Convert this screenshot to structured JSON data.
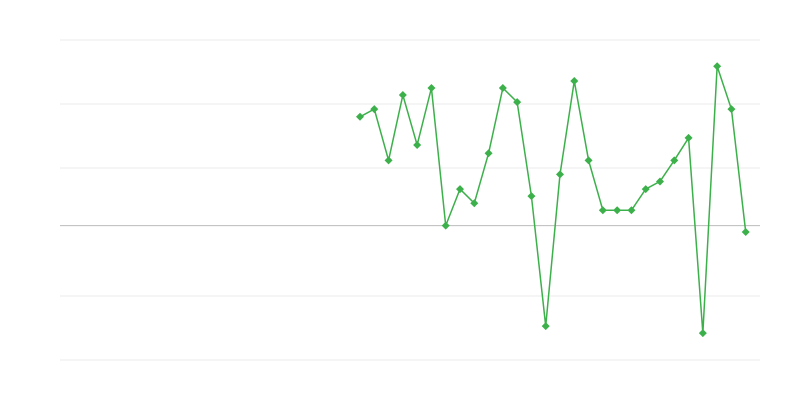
{
  "chart_data": {
    "type": "line",
    "categories": [
      null,
      null,
      null,
      null,
      null,
      null,
      null,
      null,
      null,
      null,
      null,
      null,
      null,
      null,
      null,
      null,
      null,
      null,
      null,
      null,
      null,
      null,
      null,
      null,
      null,
      null,
      null,
      null,
      null,
      null,
      null,
      null,
      null,
      null,
      null,
      null,
      null,
      null,
      null,
      null,
      null,
      null,
      null,
      null,
      null,
      null,
      null,
      null,
      null,
      null
    ],
    "series": [
      {
        "color": "#3cb04a",
        "values": [
          null,
          null,
          null,
          null,
          null,
          null,
          null,
          null,
          null,
          null,
          null,
          null,
          null,
          null,
          null,
          null,
          null,
          null,
          null,
          null,
          null,
          17,
          18.2,
          10.2,
          20.4,
          12.6,
          21.5,
          0,
          5.7,
          3.5,
          11.3,
          21.5,
          19.3,
          4.6,
          -15.7,
          8,
          22.6,
          10.2,
          2.4,
          2.4,
          2.4,
          5.7,
          6.9,
          10.2,
          13.7,
          -16.8,
          24.9,
          18.2,
          -1,
          null
        ]
      }
    ],
    "ylim": [
      -21,
      29
    ],
    "yticks": [
      -21,
      -11,
      9,
      19,
      29
    ],
    "grid": true
  }
}
